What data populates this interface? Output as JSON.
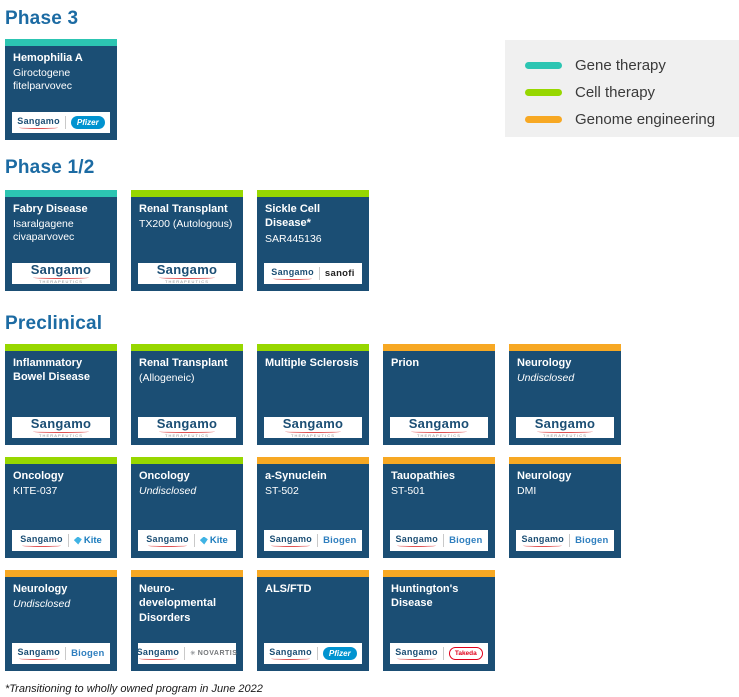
{
  "legend": {
    "items": [
      {
        "label": "Gene therapy",
        "type": "gene",
        "color": "#2cc5b2"
      },
      {
        "label": "Cell therapy",
        "type": "cell",
        "color": "#97d700"
      },
      {
        "label": "Genome engineering",
        "type": "genome",
        "color": "#f7a823"
      }
    ]
  },
  "footnote": "*Transitioning to wholly owned program in June 2022",
  "colors": {
    "card_background": "#1b4e74",
    "heading_text": "#1c6ba3",
    "gene_therapy": "#2cc5b2",
    "cell_therapy": "#97d700",
    "genome_engineering": "#f7a823",
    "pfizer_blue": "#0093d0",
    "takeda_red": "#e0001b"
  },
  "brands": {
    "sangamo": {
      "label": "Sangamo",
      "sublabel": "THERAPEUTICS"
    },
    "pfizer": {
      "label": "Pfizer"
    },
    "sanofi": {
      "label": "sanofi"
    },
    "kite": {
      "label": "Kite"
    },
    "biogen": {
      "label": "Biogen"
    },
    "novartis": {
      "label": "NOVARTIS"
    },
    "takeda": {
      "label": "Takeda"
    }
  },
  "sections": [
    {
      "title": "Phase 3",
      "rows": [
        [
          {
            "title": "Hemophilia A",
            "subtitle": "Giroctogene fitelparvovec",
            "therapy": "gene",
            "partners": [
              "sangamo",
              "pfizer"
            ]
          }
        ]
      ]
    },
    {
      "title": "Phase 1/2",
      "rows": [
        [
          {
            "title": "Fabry Disease",
            "subtitle": "Isaralgagene civaparvovec",
            "therapy": "gene",
            "partners": [
              "sangamo"
            ]
          },
          {
            "title": "Renal Transplant",
            "subtitle": "TX200 (Autologous)",
            "therapy": "cell",
            "partners": [
              "sangamo"
            ]
          },
          {
            "title": "Sickle Cell Disease*",
            "subtitle": "SAR445136",
            "therapy": "cell",
            "partners": [
              "sangamo",
              "sanofi"
            ]
          }
        ]
      ]
    },
    {
      "title": "Preclinical",
      "rows": [
        [
          {
            "title": "Inflammatory Bowel Disease",
            "subtitle": "",
            "therapy": "cell",
            "partners": [
              "sangamo"
            ]
          },
          {
            "title": "Renal Transplant",
            "subtitle": "(Allogeneic)",
            "therapy": "cell",
            "partners": [
              "sangamo"
            ]
          },
          {
            "title": "Multiple Sclerosis",
            "subtitle": "",
            "therapy": "cell",
            "partners": [
              "sangamo"
            ]
          },
          {
            "title": "Prion",
            "subtitle": "",
            "therapy": "genome",
            "partners": [
              "sangamo"
            ]
          },
          {
            "title": "Neurology",
            "subtitle": "Undisclosed",
            "therapy": "genome",
            "partners": [
              "sangamo"
            ]
          }
        ],
        [
          {
            "title": "Oncology",
            "subtitle": "KITE-037",
            "therapy": "cell",
            "partners": [
              "sangamo",
              "kite"
            ]
          },
          {
            "title": "Oncology",
            "subtitle": "Undisclosed",
            "therapy": "cell",
            "partners": [
              "sangamo",
              "kite"
            ]
          },
          {
            "title": "a-Synuclein",
            "subtitle": "ST-502",
            "therapy": "genome",
            "partners": [
              "sangamo",
              "biogen"
            ]
          },
          {
            "title": "Tauopathies",
            "subtitle": "ST-501",
            "therapy": "genome",
            "partners": [
              "sangamo",
              "biogen"
            ]
          },
          {
            "title": "Neurology",
            "subtitle": "DMI",
            "therapy": "genome",
            "partners": [
              "sangamo",
              "biogen"
            ]
          }
        ],
        [
          {
            "title": "Neurology",
            "subtitle": "Undisclosed",
            "therapy": "genome",
            "partners": [
              "sangamo",
              "biogen"
            ]
          },
          {
            "title": "Neuro-developmental Disorders",
            "subtitle": "",
            "therapy": "genome",
            "partners": [
              "sangamo",
              "novartis"
            ]
          },
          {
            "title": "ALS/FTD",
            "subtitle": "",
            "therapy": "genome",
            "partners": [
              "sangamo",
              "pfizer"
            ]
          },
          {
            "title": "Huntington's Disease",
            "subtitle": "",
            "therapy": "genome",
            "partners": [
              "sangamo",
              "takeda"
            ]
          }
        ]
      ]
    }
  ]
}
